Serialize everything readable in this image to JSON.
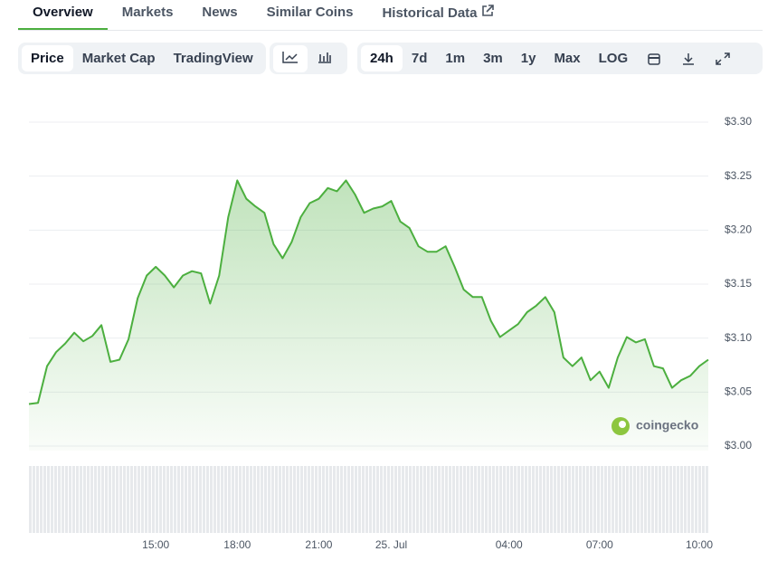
{
  "tabs": [
    "Overview",
    "Markets",
    "News",
    "Similar Coins",
    "Historical Data"
  ],
  "toolbar": {
    "views": [
      "Price",
      "Market Cap",
      "TradingView"
    ],
    "ranges": [
      "24h",
      "7d",
      "1m",
      "3m",
      "1y",
      "Max",
      "LOG"
    ]
  },
  "watermark": "coingecko",
  "chart_data": {
    "type": "line",
    "categories": [
      null,
      null,
      null,
      null,
      null,
      null,
      null,
      null,
      null,
      null,
      null,
      null,
      null,
      null,
      "15:00",
      null,
      null,
      null,
      null,
      null,
      null,
      null,
      null,
      "18:00",
      null,
      null,
      null,
      null,
      null,
      null,
      null,
      null,
      "21:00",
      null,
      null,
      null,
      null,
      null,
      null,
      null,
      "25. Jul",
      null,
      null,
      null,
      null,
      null,
      null,
      null,
      null,
      null,
      null,
      null,
      null,
      "04:00",
      null,
      null,
      null,
      null,
      null,
      null,
      null,
      null,
      null,
      "07:00",
      null,
      null,
      null,
      null,
      null,
      null,
      null,
      null,
      null,
      null,
      "10:00",
      null
    ],
    "series": [
      {
        "color": "#4caf3f",
        "values": [
          3.039,
          3.04,
          3.074,
          3.087,
          3.095,
          3.105,
          3.097,
          3.102,
          3.112,
          3.078,
          3.08,
          3.099,
          3.137,
          3.158,
          3.166,
          3.158,
          3.147,
          3.158,
          3.162,
          3.16,
          3.132,
          3.158,
          3.212,
          3.246,
          3.229,
          3.222,
          3.216,
          3.187,
          3.174,
          3.189,
          3.212,
          3.225,
          3.229,
          3.239,
          3.236,
          3.246,
          3.233,
          3.216,
          3.22,
          3.222,
          3.227,
          3.208,
          3.202,
          3.185,
          3.18,
          3.18,
          3.185,
          3.166,
          3.145,
          3.138,
          3.138,
          3.116,
          3.101,
          3.107,
          3.113,
          3.124,
          3.13,
          3.138,
          3.124,
          3.082,
          3.074,
          3.082,
          3.061,
          3.069,
          3.054,
          3.082,
          3.101,
          3.096,
          3.099,
          3.074,
          3.072,
          3.054,
          3.061,
          3.065,
          3.074,
          3.08
        ]
      }
    ],
    "ylim": [
      3.0,
      3.3
    ],
    "yticks": [
      {
        "value": 3.0,
        "label": "$3.00"
      },
      {
        "value": 3.05,
        "label": "$3.05"
      },
      {
        "value": 3.1,
        "label": "$3.10"
      },
      {
        "value": 3.15,
        "label": "$3.15"
      },
      {
        "value": 3.2,
        "label": "$3.20"
      },
      {
        "value": 3.25,
        "label": "$3.25"
      },
      {
        "value": 3.3,
        "label": "$3.30"
      }
    ],
    "grid": true
  }
}
